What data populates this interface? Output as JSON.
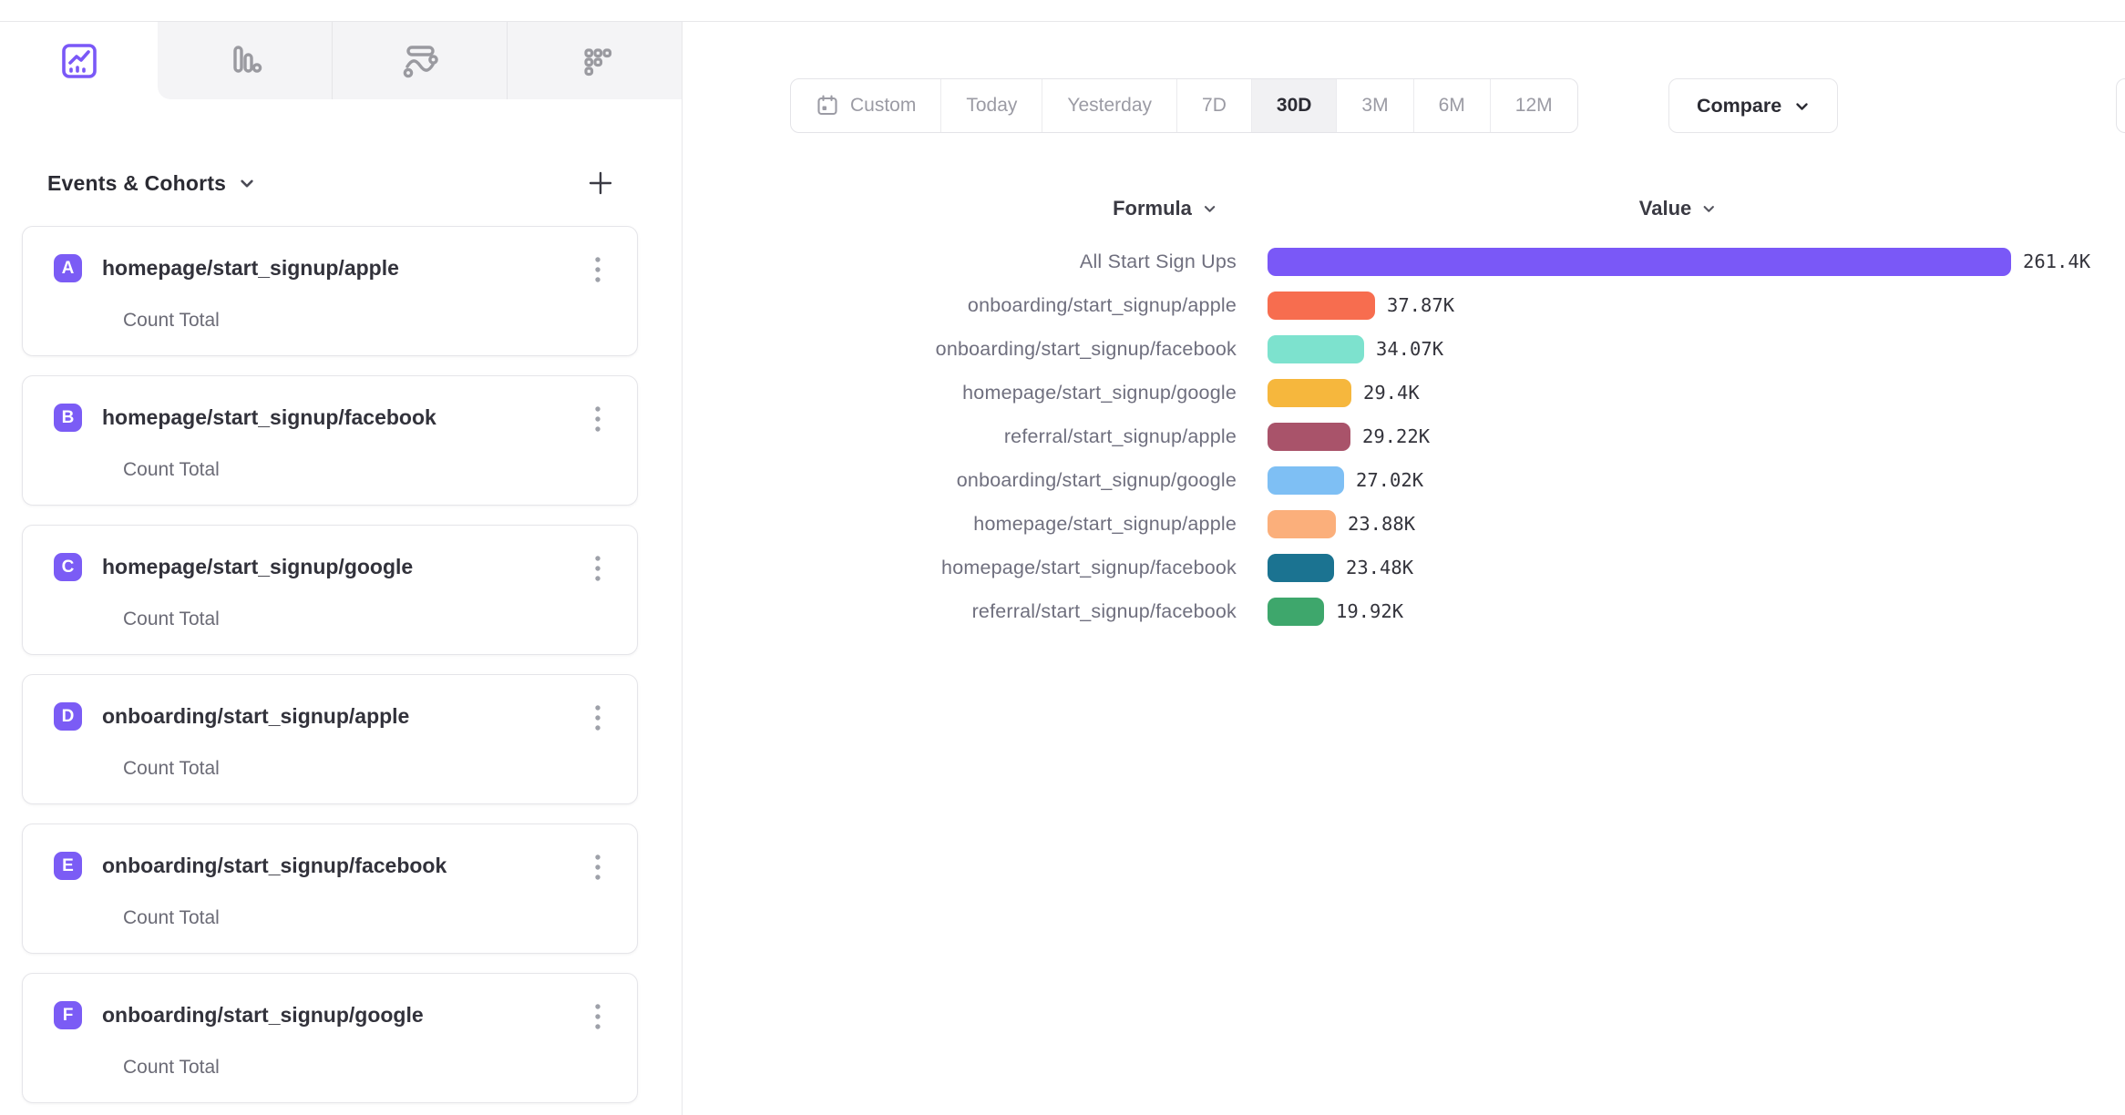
{
  "colors": {
    "accent": "#7a58f7",
    "badge": "#7b5cf5",
    "tab_icon_gray": "#9a9aa0",
    "label_gray": "#6f6f7e",
    "value_text": "#33333b"
  },
  "tabs": [
    {
      "name": "insights",
      "icon": "line-chart-icon",
      "active": true
    },
    {
      "name": "bar",
      "icon": "bar-chart-icon",
      "active": false
    },
    {
      "name": "flows",
      "icon": "flow-icon",
      "active": false
    },
    {
      "name": "retention",
      "icon": "retention-grid-icon",
      "active": false
    }
  ],
  "sidebar": {
    "title": "Events & Cohorts",
    "add_label": "+",
    "events": [
      {
        "letter": "A",
        "name": "homepage/start_signup/apple",
        "metric": "Count Total"
      },
      {
        "letter": "B",
        "name": "homepage/start_signup/facebook",
        "metric": "Count Total"
      },
      {
        "letter": "C",
        "name": "homepage/start_signup/google",
        "metric": "Count Total"
      },
      {
        "letter": "D",
        "name": "onboarding/start_signup/apple",
        "metric": "Count Total"
      },
      {
        "letter": "E",
        "name": "onboarding/start_signup/facebook",
        "metric": "Count Total"
      },
      {
        "letter": "F",
        "name": "onboarding/start_signup/google",
        "metric": "Count Total"
      }
    ]
  },
  "toolbar": {
    "date_ranges": [
      {
        "label": "Custom",
        "icon": "calendar-icon",
        "active": false
      },
      {
        "label": "Today",
        "active": false
      },
      {
        "label": "Yesterday",
        "active": false
      },
      {
        "label": "7D",
        "active": false
      },
      {
        "label": "30D",
        "active": true
      },
      {
        "label": "3M",
        "active": false
      },
      {
        "label": "6M",
        "active": false
      },
      {
        "label": "12M",
        "active": false
      }
    ],
    "compare_label": "Compare"
  },
  "chart_data": {
    "type": "bar",
    "orientation": "horizontal",
    "columns": {
      "formula": "Formula",
      "value": "Value"
    },
    "categories": [
      "All Start Sign Ups",
      "onboarding/start_signup/apple",
      "onboarding/start_signup/facebook",
      "homepage/start_signup/google",
      "referral/start_signup/apple",
      "onboarding/start_signup/google",
      "homepage/start_signup/apple",
      "homepage/start_signup/facebook",
      "referral/start_signup/facebook"
    ],
    "values": [
      261400,
      37870,
      34070,
      29400,
      29220,
      27020,
      23880,
      23480,
      19920
    ],
    "value_labels": [
      "261.4K",
      "37.87K",
      "34.07K",
      "29.4K",
      "29.22K",
      "27.02K",
      "23.88K",
      "23.48K",
      "19.92K"
    ],
    "colors": [
      "#7a58f7",
      "#f76d4f",
      "#7de2ce",
      "#f6b73d",
      "#a9536a",
      "#7ebff4",
      "#fbaf7b",
      "#1b7391",
      "#3ea76c"
    ],
    "xlim": [
      0,
      261400
    ],
    "grid": false,
    "legend": "none"
  }
}
